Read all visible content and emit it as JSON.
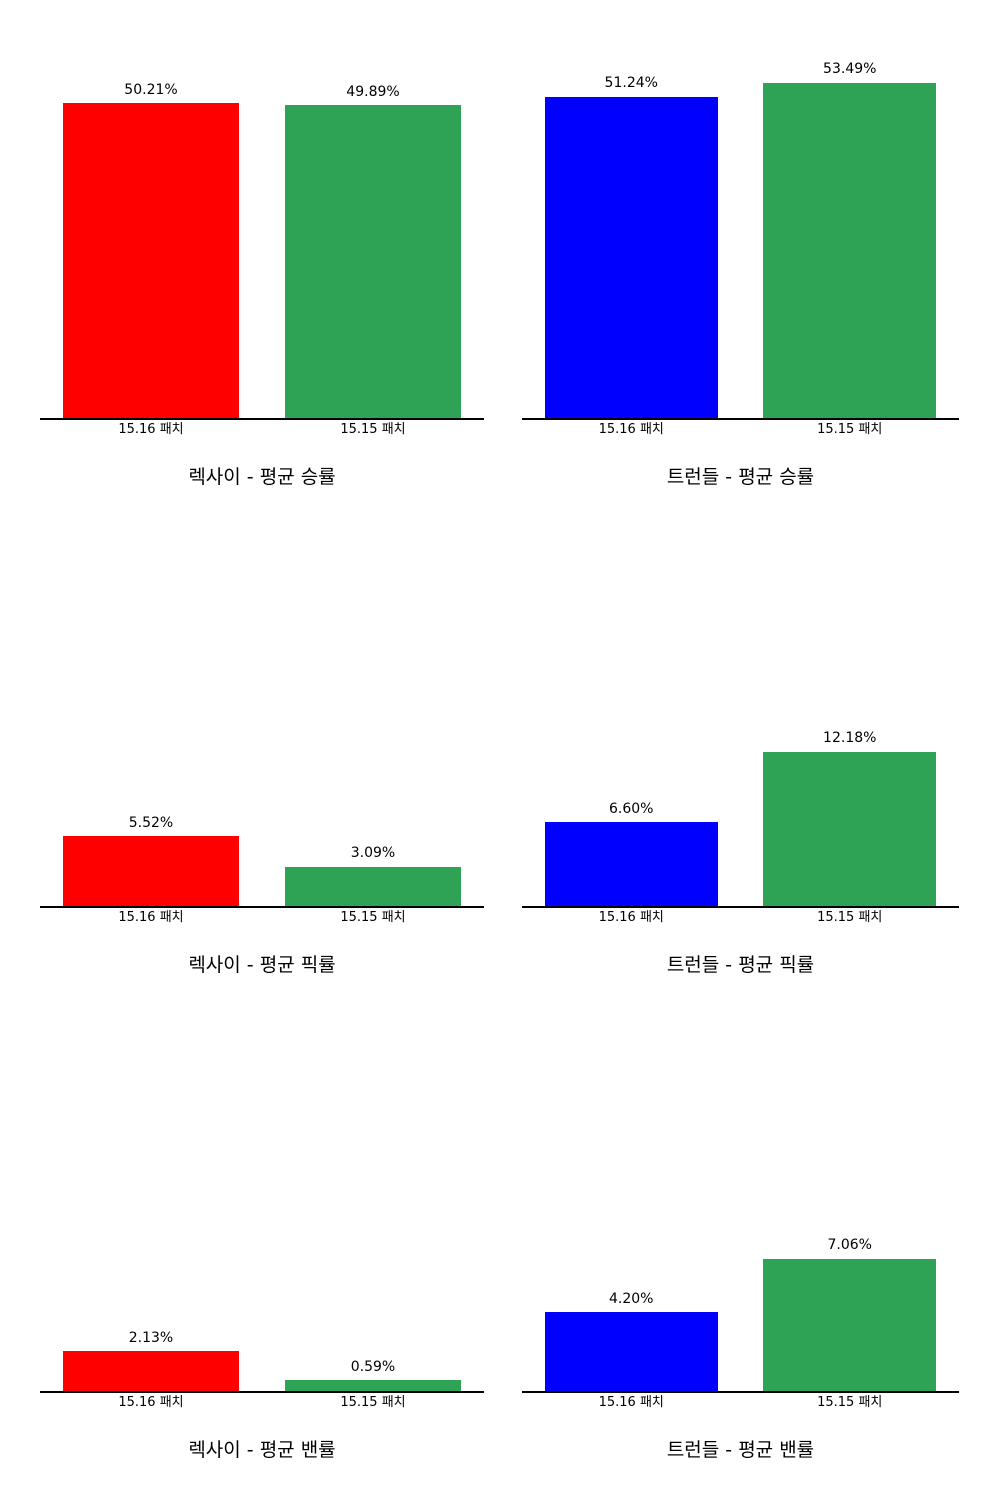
{
  "chart_data": [
    {
      "type": "bar",
      "title": "렉사이 - 평균 승률",
      "categories": [
        "15.16 패치",
        "15.15 패치"
      ],
      "values": [
        50.21,
        49.89
      ],
      "labels": [
        "50.21%",
        "49.89%"
      ],
      "colors": [
        "#ff0000",
        "#2ea355"
      ],
      "ylim": [
        0,
        56.16
      ],
      "xlabel": "",
      "ylabel": "",
      "grid": false,
      "legend": null
    },
    {
      "type": "bar",
      "title": "트런들 - 평균 승률",
      "categories": [
        "15.16 패치",
        "15.15 패치"
      ],
      "values": [
        51.24,
        53.49
      ],
      "labels": [
        "51.24%",
        "53.49%"
      ],
      "colors": [
        "#0000ff",
        "#2ea355"
      ],
      "ylim": [
        0,
        56.16
      ],
      "xlabel": "",
      "ylabel": "",
      "grid": false,
      "legend": null
    },
    {
      "type": "bar",
      "title": "렉사이 - 평균 픽률",
      "categories": [
        "15.16 패치",
        "15.15 패치"
      ],
      "values": [
        5.52,
        3.09
      ],
      "labels": [
        "5.52%",
        "3.09%"
      ],
      "colors": [
        "#ff0000",
        "#2ea355"
      ],
      "ylim": [
        0,
        12.79
      ],
      "xlabel": "",
      "ylabel": "",
      "grid": false,
      "legend": null
    },
    {
      "type": "bar",
      "title": "트런들 - 평균 픽률",
      "categories": [
        "15.16 패치",
        "15.15 패치"
      ],
      "values": [
        6.6,
        12.18
      ],
      "labels": [
        "6.60%",
        "12.18%"
      ],
      "colors": [
        "#0000ff",
        "#2ea355"
      ],
      "ylim": [
        0,
        12.79
      ],
      "xlabel": "",
      "ylabel": "",
      "grid": false,
      "legend": null
    },
    {
      "type": "bar",
      "title": "렉사이 - 평균 밴률",
      "categories": [
        "15.16 패치",
        "15.15 패치"
      ],
      "values": [
        2.13,
        0.59
      ],
      "labels": [
        "2.13%",
        "0.59%"
      ],
      "colors": [
        "#ff0000",
        "#2ea355"
      ],
      "ylim": [
        0,
        7.41
      ],
      "xlabel": "",
      "ylabel": "",
      "grid": false,
      "legend": null
    },
    {
      "type": "bar",
      "title": "트런들 - 평균 밴률",
      "categories": [
        "15.16 패치",
        "15.15 패치"
      ],
      "values": [
        4.2,
        7.06
      ],
      "labels": [
        "4.20%",
        "7.06%"
      ],
      "colors": [
        "#0000ff",
        "#2ea355"
      ],
      "ylim": [
        0,
        7.41
      ],
      "xlabel": "",
      "ylabel": "",
      "grid": false,
      "legend": null
    }
  ]
}
